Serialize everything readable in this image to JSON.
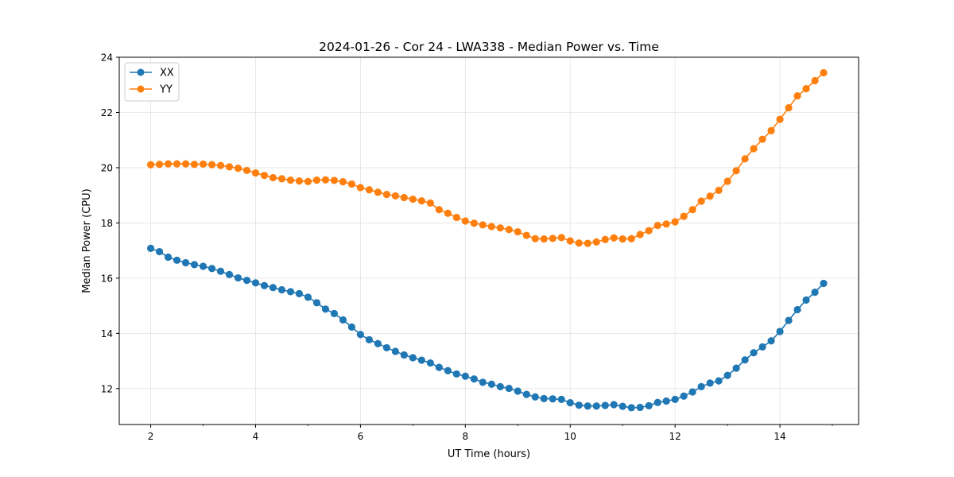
{
  "chart_data": {
    "type": "line",
    "title": "2024-01-26 - Cor 24 - LWA338 - Median Power vs. Time",
    "xlabel": "UT Time (hours)",
    "ylabel": "Median Power (CPU)",
    "xlim": [
      1.4,
      15.5
    ],
    "ylim": [
      10.7,
      24.0
    ],
    "xticks": [
      2,
      4,
      6,
      8,
      10,
      12,
      14
    ],
    "xtick_labels": [
      "2",
      "4",
      "6",
      "8",
      "10",
      "12",
      "14"
    ],
    "yticks": [
      12,
      14,
      16,
      18,
      20,
      22,
      24
    ],
    "ytick_labels": [
      "12",
      "14",
      "16",
      "18",
      "20",
      "22",
      "24"
    ],
    "grid": true,
    "legend_position": "top-left",
    "x": [
      2.0,
      2.167,
      2.333,
      2.5,
      2.667,
      2.833,
      3.0,
      3.167,
      3.333,
      3.5,
      3.667,
      3.833,
      4.0,
      4.167,
      4.333,
      4.5,
      4.667,
      4.833,
      5.0,
      5.167,
      5.333,
      5.5,
      5.667,
      5.833,
      6.0,
      6.167,
      6.333,
      6.5,
      6.667,
      6.833,
      7.0,
      7.167,
      7.333,
      7.5,
      7.667,
      7.833,
      8.0,
      8.167,
      8.333,
      8.5,
      8.667,
      8.833,
      9.0,
      9.167,
      9.333,
      9.5,
      9.667,
      9.833,
      10.0,
      10.167,
      10.333,
      10.5,
      10.667,
      10.833,
      11.0,
      11.167,
      11.333,
      11.5,
      11.667,
      11.833,
      12.0,
      12.167,
      12.333,
      12.5,
      12.667,
      12.833,
      13.0,
      13.167,
      13.333,
      13.5,
      13.667,
      13.833,
      14.0,
      14.167,
      14.333,
      14.5,
      14.667,
      14.833
    ],
    "series": [
      {
        "name": "XX",
        "color": "#1f77b4",
        "values": [
          17.08,
          16.96,
          16.76,
          16.65,
          16.56,
          16.49,
          16.43,
          16.35,
          16.25,
          16.13,
          16.01,
          15.92,
          15.83,
          15.73,
          15.66,
          15.58,
          15.51,
          15.44,
          15.31,
          15.11,
          14.88,
          14.72,
          14.49,
          14.23,
          13.96,
          13.77,
          13.63,
          13.48,
          13.35,
          13.22,
          13.12,
          13.03,
          12.93,
          12.77,
          12.65,
          12.53,
          12.45,
          12.35,
          12.23,
          12.16,
          12.07,
          12.01,
          11.91,
          11.79,
          11.7,
          11.64,
          11.63,
          11.61,
          11.49,
          11.4,
          11.37,
          11.37,
          11.39,
          11.42,
          11.36,
          11.31,
          11.32,
          11.38,
          11.5,
          11.55,
          11.61,
          11.73,
          11.88,
          12.07,
          12.2,
          12.28,
          12.48,
          12.74,
          13.04,
          13.3,
          13.51,
          13.73,
          14.07,
          14.47,
          14.86,
          15.21,
          15.49,
          15.81
        ]
      },
      {
        "name": "YY",
        "color": "#ff7f0e",
        "values": [
          20.11,
          20.12,
          20.14,
          20.14,
          20.14,
          20.12,
          20.13,
          20.11,
          20.08,
          20.03,
          19.98,
          19.9,
          19.81,
          19.72,
          19.64,
          19.6,
          19.55,
          19.52,
          19.5,
          19.55,
          19.56,
          19.54,
          19.49,
          19.41,
          19.28,
          19.2,
          19.11,
          19.03,
          18.98,
          18.92,
          18.86,
          18.8,
          18.72,
          18.48,
          18.35,
          18.2,
          18.07,
          17.99,
          17.93,
          17.87,
          17.82,
          17.76,
          17.68,
          17.55,
          17.43,
          17.42,
          17.44,
          17.47,
          17.35,
          17.27,
          17.26,
          17.31,
          17.4,
          17.46,
          17.42,
          17.43,
          17.58,
          17.72,
          17.91,
          17.96,
          18.04,
          18.24,
          18.48,
          18.79,
          18.97,
          19.18,
          19.51,
          19.89,
          20.32,
          20.69,
          21.03,
          21.34,
          21.75,
          22.17,
          22.6,
          22.86,
          23.15,
          23.44
        ]
      }
    ]
  }
}
